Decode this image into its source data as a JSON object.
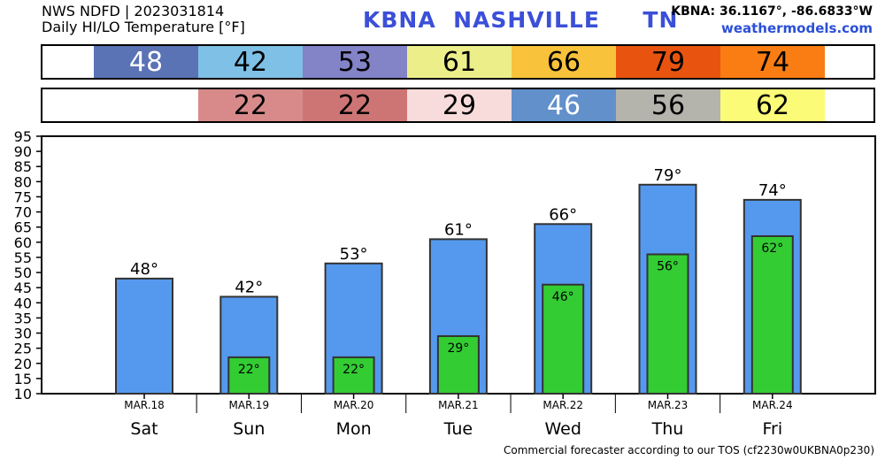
{
  "header": {
    "line1": "NWS NDFD | 2023031814",
    "line2": "Daily HI/LO Temperature [°F]",
    "station": "KBNA  NASHVILLE     TN",
    "coords": "KBNA: 36.1167°, -86.6833°W",
    "site": "weathermodels.com"
  },
  "strips": {
    "hi": [
      {
        "text": "48",
        "bg": "#5a73b5",
        "fg": "#ffffff"
      },
      {
        "text": "42",
        "bg": "#7ec0e6",
        "fg": "#000000"
      },
      {
        "text": "53",
        "bg": "#8383c8",
        "fg": "#000000"
      },
      {
        "text": "61",
        "bg": "#ecee8a",
        "fg": "#000000"
      },
      {
        "text": "66",
        "bg": "#f8c33a",
        "fg": "#000000"
      },
      {
        "text": "79",
        "bg": "#e85410",
        "fg": "#000000"
      },
      {
        "text": "74",
        "bg": "#f97d12",
        "fg": "#000000"
      }
    ],
    "lo": [
      {
        "text": "",
        "bg": "#ffffff",
        "fg": "#000000"
      },
      {
        "text": "22",
        "bg": "#d88a8a",
        "fg": "#000000"
      },
      {
        "text": "22",
        "bg": "#cd7575",
        "fg": "#000000"
      },
      {
        "text": "29",
        "bg": "#f8dcdc",
        "fg": "#000000"
      },
      {
        "text": "46",
        "bg": "#6190cb",
        "fg": "#ffffff"
      },
      {
        "text": "56",
        "bg": "#b4b4ac",
        "fg": "#000000"
      },
      {
        "text": "62",
        "bg": "#fbfb78",
        "fg": "#000000"
      }
    ]
  },
  "chart_data": {
    "type": "bar",
    "categories": [
      "Sat",
      "Sun",
      "Mon",
      "Tue",
      "Wed",
      "Thu",
      "Fri"
    ],
    "dates": [
      "MAR.18",
      "MAR.19",
      "MAR.20",
      "MAR.21",
      "MAR.22",
      "MAR.23",
      "MAR.24"
    ],
    "series": [
      {
        "values": [
          48,
          42,
          53,
          61,
          66,
          79,
          74
        ],
        "color": "#5599ee",
        "labels": [
          "48°",
          "42°",
          "53°",
          "61°",
          "66°",
          "79°",
          "74°"
        ]
      },
      {
        "values": [
          null,
          22,
          22,
          29,
          46,
          56,
          62
        ],
        "color": "#33cc33",
        "labels": [
          "",
          "22°",
          "22°",
          "29°",
          "46°",
          "56°",
          "62°"
        ]
      }
    ],
    "ylim": [
      10,
      95
    ],
    "yticks": [
      "10",
      "15",
      "20",
      "25",
      "30",
      "35",
      "40",
      "45",
      "50",
      "55",
      "60",
      "65",
      "70",
      "75",
      "80",
      "85",
      "90",
      "95"
    ],
    "grid": false
  },
  "footer": "Commercial forecaster according to our TOS (cf2230w0UKBNA0p230)"
}
